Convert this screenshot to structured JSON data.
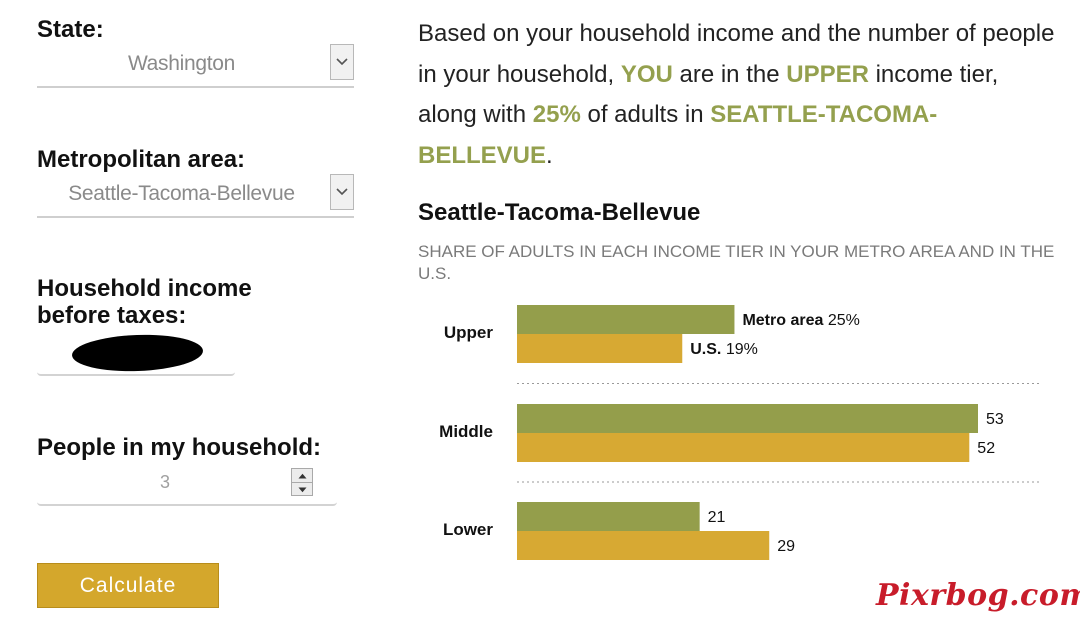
{
  "form": {
    "state_label": "State:",
    "state_value": "Washington",
    "metro_label": "Metropolitan area:",
    "metro_value": "Seattle-Tacoma-Bellevue",
    "income_label_line1": "Household income",
    "income_label_line2": "before taxes:",
    "people_label": "People in my household:",
    "people_value": "3",
    "calculate_label": "Calculate"
  },
  "summary": {
    "part1": "Based on your household income and the number of people in your household, ",
    "you": "YOU",
    "part2": " are in the ",
    "tier": "UPPER",
    "part3": " income tier, along with ",
    "share": "25%",
    "part4": " of adults in ",
    "metro": "SEATTLE-TACOMA-BELLEVUE",
    "part5": "."
  },
  "watermark": "Pixrbog.com",
  "colors": {
    "metro_bar": "#949e4b",
    "us_bar": "#d7a933",
    "highlight": "#94a04e",
    "button": "#d4a72c"
  },
  "chart_data": {
    "type": "bar",
    "orientation": "horizontal",
    "title": "Seattle-Tacoma-Bellevue",
    "subtitle": "SHARE OF ADULTS IN EACH INCOME TIER IN YOUR METRO AREA AND IN THE U.S.",
    "categories": [
      "Upper",
      "Middle",
      "Lower"
    ],
    "series": [
      {
        "name": "Metro area",
        "values": [
          25,
          53,
          21
        ],
        "color": "#949e4b"
      },
      {
        "name": "U.S.",
        "values": [
          19,
          52,
          29
        ],
        "color": "#d7a933"
      }
    ],
    "value_labels": {
      "Upper": [
        "25%",
        "19%"
      ],
      "Middle": [
        "53",
        "52"
      ],
      "Lower": [
        "21",
        "29"
      ]
    },
    "xlim": [
      0,
      53
    ],
    "grid": false,
    "legend": "inline"
  }
}
